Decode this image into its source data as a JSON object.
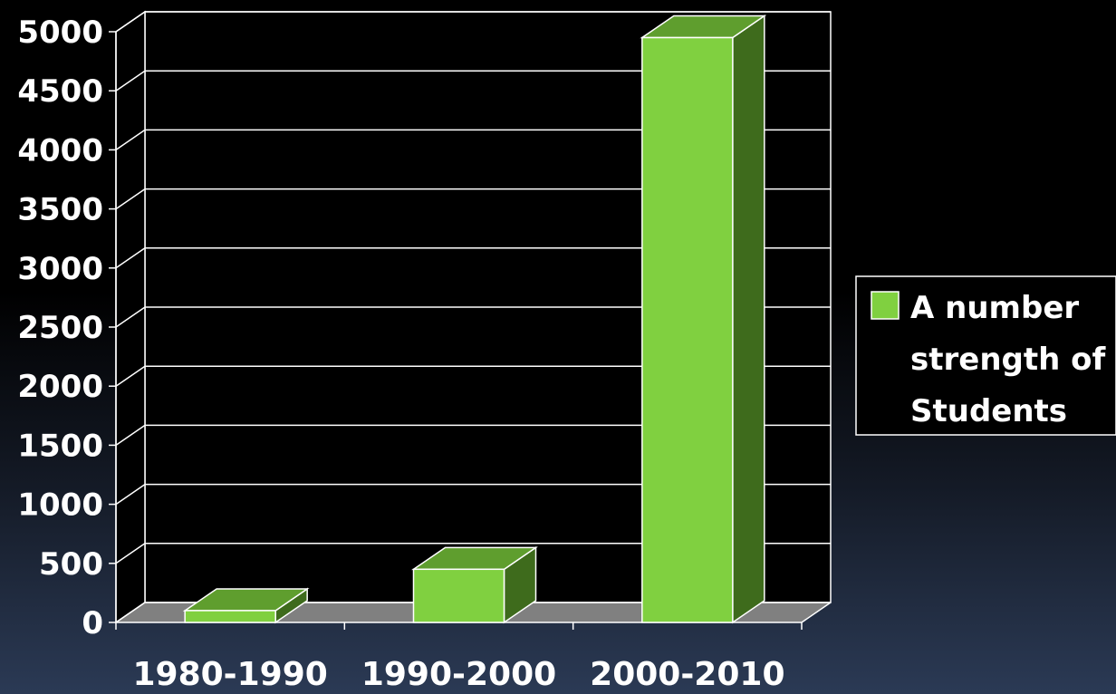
{
  "chart_data": {
    "type": "bar",
    "categories": [
      "1980-1990",
      "1990-2000",
      "2000-2010"
    ],
    "series": [
      {
        "name": "A number strength of Students",
        "values": [
          100,
          450,
          4950
        ]
      }
    ],
    "title": "",
    "xlabel": "",
    "ylabel": "",
    "ylim": [
      0,
      5000
    ],
    "yticks": [
      "0",
      "500",
      "1000",
      "1500",
      "2000",
      "2500",
      "3000",
      "3500",
      "4000",
      "4500",
      "5000"
    ],
    "legend": {
      "placement": "right",
      "lines": [
        "A number",
        "strength of",
        "Students"
      ]
    },
    "grid": true,
    "colors": {
      "bar_front": "#80d040",
      "bar_top": "#5f9e2e",
      "bar_side": "#3e6b1c",
      "floor": "#808080",
      "grid": "#ffffff"
    }
  }
}
